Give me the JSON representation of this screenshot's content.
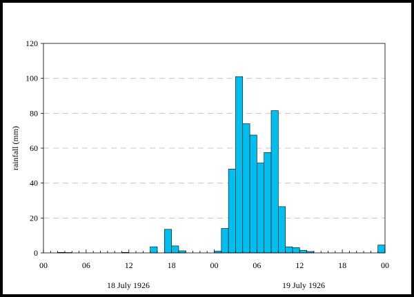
{
  "chart_data": {
    "type": "bar",
    "title": "",
    "xlabel": "",
    "ylabel": "rainfall (mm)",
    "ylim": [
      0,
      120
    ],
    "yticks": [
      "0",
      "20",
      "40",
      "60",
      "80",
      "100",
      "120"
    ],
    "x_range_hours": [
      0,
      48
    ],
    "xticks": [
      {
        "hour": 0,
        "label": "00"
      },
      {
        "hour": 6,
        "label": "06"
      },
      {
        "hour": 12,
        "label": "12"
      },
      {
        "hour": 18,
        "label": "18"
      },
      {
        "hour": 24,
        "label": "00"
      },
      {
        "hour": 30,
        "label": "06"
      },
      {
        "hour": 36,
        "label": "12"
      },
      {
        "hour": 42,
        "label": "18"
      },
      {
        "hour": 48,
        "label": "00"
      }
    ],
    "date_labels": [
      "18 July 1926",
      "19 July 1926"
    ],
    "grid": "horizontal dashed",
    "bar_color": "#00bfef",
    "bars": [
      {
        "hour": 2,
        "value": 0.3
      },
      {
        "hour": 3,
        "value": 0.2
      },
      {
        "hour": 11,
        "value": 0.3
      },
      {
        "hour": 15,
        "value": 3.5
      },
      {
        "hour": 17,
        "value": 13.5
      },
      {
        "hour": 18,
        "value": 4
      },
      {
        "hour": 19,
        "value": 1.2
      },
      {
        "hour": 24,
        "value": 1
      },
      {
        "hour": 25,
        "value": 14
      },
      {
        "hour": 26,
        "value": 48
      },
      {
        "hour": 27,
        "value": 101
      },
      {
        "hour": 28,
        "value": 74
      },
      {
        "hour": 29,
        "value": 67.5
      },
      {
        "hour": 30,
        "value": 51.5
      },
      {
        "hour": 31,
        "value": 57.5
      },
      {
        "hour": 32,
        "value": 81.5
      },
      {
        "hour": 33,
        "value": 26.5
      },
      {
        "hour": 34,
        "value": 3.5
      },
      {
        "hour": 35,
        "value": 3
      },
      {
        "hour": 36,
        "value": 1.5
      },
      {
        "hour": 37,
        "value": 0.8
      },
      {
        "hour": 47,
        "value": 4.5
      }
    ]
  }
}
